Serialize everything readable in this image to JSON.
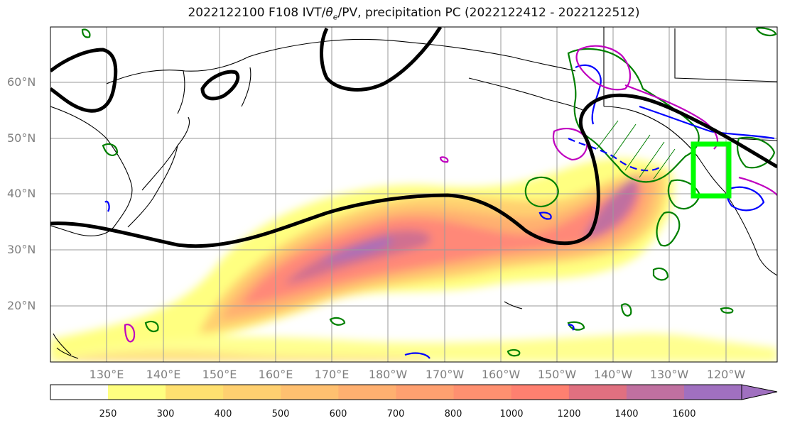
{
  "title": {
    "prefix": "2022122100 F108 IVT/",
    "theta": "θ",
    "theta_sub": "e",
    "suffix": "/PV, precipitation PC (2022122412 - 2022122512)"
  },
  "map": {
    "lat_labels": [
      "60°N",
      "50°N",
      "40°N",
      "30°N",
      "20°N"
    ],
    "lon_labels": [
      "130°E",
      "140°E",
      "150°E",
      "160°E",
      "170°E",
      "180°W",
      "170°W",
      "160°W",
      "150°W",
      "140°W",
      "130°W",
      "120°W"
    ],
    "contour_colors": {
      "pv": "#000000",
      "precip_green": "#008000",
      "precip_blue": "#0000ff",
      "precip_magenta": "#bf00bf",
      "target_box": "#00ff00"
    }
  },
  "colorbar": {
    "labels": [
      "250",
      "300",
      "400",
      "500",
      "600",
      "700",
      "800",
      "1000",
      "1200",
      "1400",
      "1600"
    ],
    "colors": [
      "#ffff80",
      "#ffe070",
      "#ffd070",
      "#ffc070",
      "#ffb070",
      "#ffa070",
      "#ff9070",
      "#ff8070",
      "#e07080",
      "#c070a0",
      "#a070c0"
    ]
  }
}
